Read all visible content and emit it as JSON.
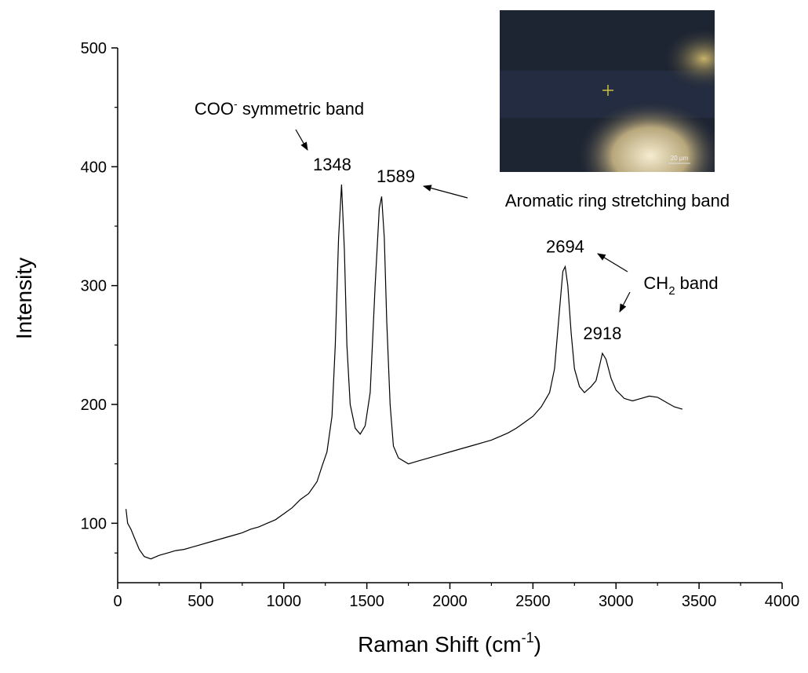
{
  "chart_data": {
    "type": "line",
    "y_label": "Intensity",
    "x_label": {
      "text": "Raman Shift (cm",
      "sup": "-1",
      "rest": ")"
    },
    "annotations": [
      {
        "text": "COO",
        "sup": "-",
        "rest": " symmetric band"
      },
      {
        "text": "Aromatic ring stretching band"
      },
      {
        "text": "CH",
        "sub": "2",
        "rest": " band"
      }
    ],
    "peak_labels": [
      1348,
      1589,
      2694,
      2918
    ],
    "inset_scale": "20 µm",
    "color": "#000000",
    "xlim": [
      0,
      4000
    ],
    "xticks": [
      0,
      500,
      1000,
      1500,
      2000,
      2500,
      3000,
      3500,
      4000
    ],
    "ylim": [
      50,
      500
    ],
    "yticks": [
      100,
      200,
      300,
      400,
      500
    ],
    "x": [
      50,
      60,
      80,
      100,
      130,
      160,
      200,
      250,
      300,
      350,
      400,
      450,
      500,
      550,
      600,
      650,
      700,
      750,
      800,
      850,
      900,
      950,
      1000,
      1050,
      1100,
      1150,
      1200,
      1230,
      1260,
      1290,
      1310,
      1330,
      1348,
      1365,
      1380,
      1400,
      1430,
      1460,
      1490,
      1520,
      1550,
      1575,
      1589,
      1605,
      1620,
      1640,
      1660,
      1690,
      1750,
      1800,
      1850,
      1900,
      1950,
      2000,
      2050,
      2100,
      2150,
      2200,
      2250,
      2300,
      2350,
      2400,
      2450,
      2500,
      2550,
      2600,
      2630,
      2660,
      2680,
      2694,
      2710,
      2730,
      2750,
      2780,
      2810,
      2850,
      2880,
      2900,
      2918,
      2940,
      2970,
      3000,
      3050,
      3100,
      3150,
      3200,
      3250,
      3300,
      3350,
      3400
    ],
    "values": [
      112,
      100,
      95,
      88,
      78,
      72,
      70,
      73,
      75,
      77,
      78,
      80,
      82,
      84,
      86,
      88,
      90,
      92,
      95,
      97,
      100,
      103,
      108,
      113,
      120,
      125,
      135,
      148,
      160,
      190,
      250,
      340,
      385,
      330,
      250,
      200,
      180,
      175,
      182,
      210,
      300,
      365,
      375,
      340,
      270,
      200,
      165,
      155,
      150,
      152,
      154,
      156,
      158,
      160,
      162,
      164,
      166,
      168,
      170,
      173,
      176,
      180,
      185,
      190,
      198,
      210,
      230,
      280,
      312,
      316,
      300,
      260,
      230,
      215,
      210,
      215,
      220,
      232,
      243,
      238,
      222,
      212,
      205,
      203,
      205,
      207,
      206,
      202,
      198,
      196
    ]
  }
}
